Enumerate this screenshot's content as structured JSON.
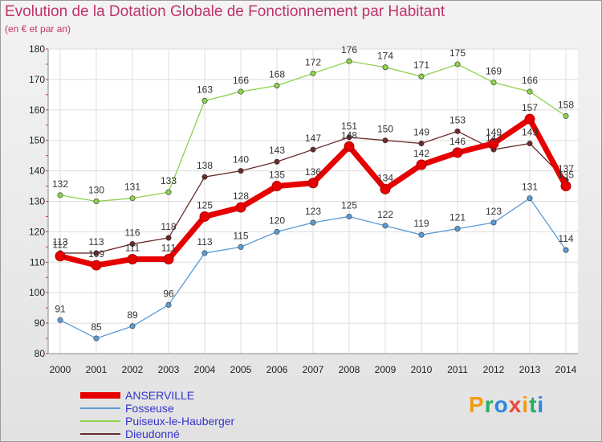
{
  "header": {
    "title": "Evolution de la Dotation Globale de Fonctionnement par Habitant",
    "subtitle": "(en € et par an)"
  },
  "logo": {
    "text": "Proxiti",
    "colors": [
      "#f39c12",
      "#27ae60",
      "#2e86de",
      "#e74c3c"
    ]
  },
  "chart_data": {
    "type": "line",
    "title": "Evolution de la Dotation Globale de Fonctionnement par Habitant",
    "subtitle": "(en € et par an)",
    "xlabel": "",
    "ylabel": "",
    "ylim": [
      80,
      180
    ],
    "yticks": [
      80,
      90,
      100,
      110,
      120,
      130,
      140,
      150,
      160,
      170,
      180
    ],
    "grid": true,
    "legend": "bottom-left",
    "categories": [
      "2000",
      "2001",
      "2002",
      "2003",
      "2004",
      "2005",
      "2006",
      "2007",
      "2008",
      "2009",
      "2010",
      "2011",
      "2012",
      "2013",
      "2014"
    ],
    "series": [
      {
        "name": "Fosseuse",
        "color": "#5b9bd5",
        "values": [
          91,
          85,
          89,
          96,
          113,
          115,
          120,
          123,
          125,
          122,
          119,
          121,
          123,
          131,
          114
        ]
      },
      {
        "name": "Puiseux-le-Hauberger",
        "color": "#8fd14f",
        "values": [
          132,
          130,
          131,
          133,
          163,
          166,
          168,
          172,
          176,
          174,
          171,
          175,
          169,
          166,
          158
        ]
      },
      {
        "name": "Dieudonné",
        "color": "#6b2b2b",
        "values": [
          113,
          113,
          116,
          118,
          138,
          140,
          143,
          147,
          151,
          150,
          149,
          153,
          147,
          149,
          137
        ]
      },
      {
        "name": "ANSERVILLE",
        "color": "#e60000",
        "values": [
          112,
          109,
          111,
          111,
          125,
          128,
          135,
          136,
          148,
          134,
          142,
          146,
          149,
          157,
          135
        ]
      }
    ],
    "legend_order": [
      "ANSERVILLE",
      "Fosseuse",
      "Puiseux-le-Hauberger",
      "Dieudonné"
    ]
  }
}
